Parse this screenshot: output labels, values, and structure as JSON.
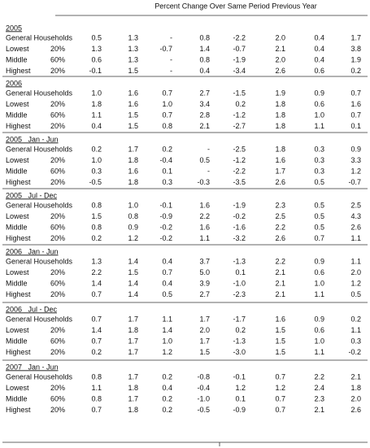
{
  "header": {
    "title": "Percent Change Over Same Period Previous Year"
  },
  "sections": [
    {
      "title": "2005",
      "rows": [
        {
          "label": "General Households",
          "values": [
            "0.5",
            "1.3",
            "-",
            "0.8",
            "-2.2",
            "2.0",
            "0.4",
            "1.7"
          ]
        },
        {
          "label": "Lowest",
          "share": "20%",
          "values": [
            "1.3",
            "1.3",
            "-0.7",
            "1.4",
            "-0.7",
            "2.1",
            "0.4",
            "3.8"
          ]
        },
        {
          "label": "Middle",
          "share": "60%",
          "values": [
            "0.6",
            "1.3",
            "-",
            "0.8",
            "-1.9",
            "2.0",
            "0.4",
            "1.9"
          ]
        },
        {
          "label": "Highest",
          "share": "20%",
          "values": [
            "-0.1",
            "1.5",
            "-",
            "0.4",
            "-3.4",
            "2.6",
            "0.6",
            "0.2"
          ]
        }
      ]
    },
    {
      "title": "2006",
      "rows": [
        {
          "label": "General Households",
          "values": [
            "1.0",
            "1.6",
            "0.7",
            "2.7",
            "-1.5",
            "1.9",
            "0.9",
            "0.7"
          ]
        },
        {
          "label": "Lowest",
          "share": "20%",
          "values": [
            "1.8",
            "1.6",
            "1.0",
            "3.4",
            "0.2",
            "1.8",
            "0.6",
            "1.6"
          ]
        },
        {
          "label": "Middle",
          "share": "60%",
          "values": [
            "1.1",
            "1.5",
            "0.7",
            "2.8",
            "-1.2",
            "1.8",
            "1.0",
            "0.7"
          ]
        },
        {
          "label": "Highest",
          "share": "20%",
          "values": [
            "0.4",
            "1.5",
            "0.8",
            "2.1",
            "-2.7",
            "1.8",
            "1.1",
            "0.1"
          ]
        }
      ]
    },
    {
      "title": "2005   Jan - Jun",
      "rows": [
        {
          "label": "General Households",
          "values": [
            "0.2",
            "1.7",
            "0.2",
            "-",
            "-2.5",
            "1.8",
            "0.3",
            "0.9"
          ]
        },
        {
          "label": "Lowest",
          "share": "20%",
          "values": [
            "1.0",
            "1.8",
            "-0.4",
            "0.5",
            "-1.2",
            "1.6",
            "0.3",
            "3.3"
          ]
        },
        {
          "label": "Middle",
          "share": "60%",
          "values": [
            "0.3",
            "1.6",
            "0.1",
            "-",
            "-2.2",
            "1.7",
            "0.3",
            "1.2"
          ]
        },
        {
          "label": "Highest",
          "share": "20%",
          "values": [
            "-0.5",
            "1.8",
            "0.3",
            "-0.3",
            "-3.5",
            "2.6",
            "0.5",
            "-0.7"
          ]
        }
      ]
    },
    {
      "title": "2005   Jul - Dec",
      "rows": [
        {
          "label": "General Households",
          "values": [
            "0.8",
            "1.0",
            "-0.1",
            "1.6",
            "-1.9",
            "2.3",
            "0.5",
            "2.5"
          ]
        },
        {
          "label": "Lowest",
          "share": "20%",
          "values": [
            "1.5",
            "0.8",
            "-0.9",
            "2.2",
            "-0.2",
            "2.5",
            "0.5",
            "4.3"
          ]
        },
        {
          "label": "Middle",
          "share": "60%",
          "values": [
            "0.8",
            "0.9",
            "-0.2",
            "1.6",
            "-1.6",
            "2.2",
            "0.5",
            "2.6"
          ]
        },
        {
          "label": "Highest",
          "share": "20%",
          "values": [
            "0.2",
            "1.2",
            "-0.2",
            "1.1",
            "-3.2",
            "2.6",
            "0.7",
            "1.1"
          ]
        }
      ]
    },
    {
      "title": "2006   Jan - Jun",
      "rows": [
        {
          "label": "General Households",
          "values": [
            "1.3",
            "1.4",
            "0.4",
            "3.7",
            "-1.3",
            "2.2",
            "0.9",
            "1.1"
          ]
        },
        {
          "label": "Lowest",
          "share": "20%",
          "values": [
            "2.2",
            "1.5",
            "0.7",
            "5.0",
            "0.1",
            "2.1",
            "0.6",
            "2.0"
          ]
        },
        {
          "label": "Middle",
          "share": "60%",
          "values": [
            "1.4",
            "1.4",
            "0.4",
            "3.9",
            "-1.0",
            "2.1",
            "1.0",
            "1.2"
          ]
        },
        {
          "label": "Highest",
          "share": "20%",
          "values": [
            "0.7",
            "1.4",
            "0.5",
            "2.7",
            "-2.3",
            "2.1",
            "1.1",
            "0.5"
          ]
        }
      ]
    },
    {
      "title": "2006   Jul - Dec",
      "rows": [
        {
          "label": "General Households",
          "values": [
            "0.7",
            "1.7",
            "1.1",
            "1.7",
            "-1.7",
            "1.6",
            "0.9",
            "0.2"
          ]
        },
        {
          "label": "Lowest",
          "share": "20%",
          "values": [
            "1.4",
            "1.8",
            "1.4",
            "2.0",
            "0.2",
            "1.5",
            "0.6",
            "1.1"
          ]
        },
        {
          "label": "Middle",
          "share": "60%",
          "values": [
            "0.7",
            "1.7",
            "1.0",
            "1.7",
            "-1.3",
            "1.5",
            "1.0",
            "0.3"
          ]
        },
        {
          "label": "Highest",
          "share": "20%",
          "values": [
            "0.2",
            "1.7",
            "1.2",
            "1.5",
            "-3.0",
            "1.5",
            "1.1",
            "-0.2"
          ]
        }
      ]
    },
    {
      "title": "2007   Jan - Jun",
      "rows": [
        {
          "label": "General Households",
          "values": [
            "0.8",
            "1.7",
            "0.2",
            "-0.8",
            "-0.1",
            "0.7",
            "2.2",
            "2.1"
          ]
        },
        {
          "label": "Lowest",
          "share": "20%",
          "values": [
            "1.1",
            "1.8",
            "0.4",
            "-0.4",
            "1.2",
            "1.2",
            "2.4",
            "1.8"
          ]
        },
        {
          "label": "Middle",
          "share": "60%",
          "values": [
            "0.8",
            "1.7",
            "0.2",
            "-1.0",
            "0.1",
            "0.7",
            "2.3",
            "2.0"
          ]
        },
        {
          "label": "Highest",
          "share": "20%",
          "values": [
            "0.7",
            "1.8",
            "0.2",
            "-0.5",
            "-0.9",
            "0.7",
            "2.1",
            "2.6"
          ]
        }
      ]
    }
  ]
}
